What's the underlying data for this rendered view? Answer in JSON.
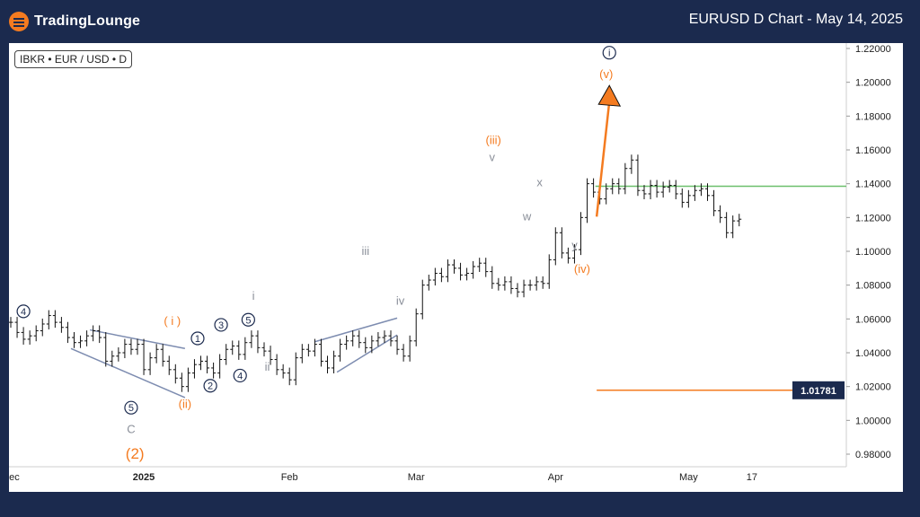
{
  "header": {
    "logo_text": "TradingLounge",
    "title": "EURUSD D Chart - May 14, 2025"
  },
  "symbol_label": "IBKR • EUR / USD • D",
  "colors": {
    "background": "#1b2a4e",
    "orange": "#f47b20",
    "navy": "#1b2a4e",
    "grey": "#8a8f99",
    "green": "#6cbf6c",
    "channel": "#7d8cb0"
  },
  "chart_data": {
    "type": "ohlc",
    "title": "EURUSD D Chart - May 14, 2025",
    "ylim": [
      0.97,
      1.225
    ],
    "y_ticks": [
      "1.22000",
      "1.20000",
      "1.18000",
      "1.16000",
      "1.14000",
      "1.12000",
      "1.10000",
      "1.08000",
      "1.06000",
      "1.04000",
      "1.02000",
      "1.00000",
      "0.98000"
    ],
    "x_ticks": [
      {
        "label": "Dec",
        "bar": 0,
        "bold": false
      },
      {
        "label": "2025",
        "bar": 21,
        "bold": true
      },
      {
        "label": "Feb",
        "bar": 44,
        "bold": false
      },
      {
        "label": "Mar",
        "bar": 64,
        "bold": false
      },
      {
        "label": "Apr",
        "bar": 86,
        "bold": false
      },
      {
        "label": "May",
        "bar": 107,
        "bold": false
      },
      {
        "label": "17",
        "bar": 117,
        "bold": false
      }
    ],
    "closes": [
      1.058,
      1.052,
      1.048,
      1.05,
      1.053,
      1.057,
      1.062,
      1.058,
      1.055,
      1.049,
      1.046,
      1.047,
      1.05,
      1.053,
      1.049,
      1.035,
      1.038,
      1.04,
      1.045,
      1.042,
      1.045,
      1.03,
      1.037,
      1.042,
      1.035,
      1.03,
      1.025,
      1.02,
      1.028,
      1.033,
      1.035,
      1.031,
      1.028,
      1.036,
      1.042,
      1.044,
      1.039,
      1.046,
      1.05,
      1.043,
      1.041,
      1.036,
      1.03,
      1.028,
      1.024,
      1.037,
      1.042,
      1.041,
      1.045,
      1.035,
      1.031,
      1.038,
      1.045,
      1.047,
      1.05,
      1.046,
      1.043,
      1.047,
      1.049,
      1.05,
      1.047,
      1.042,
      1.038,
      1.047,
      1.063,
      1.08,
      1.083,
      1.087,
      1.085,
      1.092,
      1.09,
      1.086,
      1.087,
      1.091,
      1.093,
      1.088,
      1.081,
      1.08,
      1.082,
      1.078,
      1.076,
      1.08,
      1.08,
      1.082,
      1.081,
      1.095,
      1.111,
      1.099,
      1.096,
      1.101,
      1.12,
      1.14,
      1.135,
      1.131,
      1.137,
      1.14,
      1.137,
      1.149,
      1.154,
      1.136,
      1.134,
      1.139,
      1.135,
      1.138,
      1.139,
      1.134,
      1.129,
      1.133,
      1.136,
      1.137,
      1.133,
      1.124,
      1.12,
      1.111,
      1.118,
      1.119
    ],
    "current_value": "1.01781",
    "current_level": 1.0178,
    "green_level": 1.1385,
    "wave_labels": [
      {
        "text": "4",
        "bar": 2,
        "y": 1.0645,
        "style": "navy-circle"
      },
      {
        "text": "5",
        "bar": 19,
        "y": 1.0075,
        "style": "navy-circle"
      },
      {
        "text": "C",
        "bar": 19,
        "y": 0.9945,
        "style": "grey"
      },
      {
        "text": "(2)",
        "bar": 19.6,
        "y": 0.9795,
        "style": "orange-large"
      },
      {
        "text": "( i )",
        "bar": 25.5,
        "y": 1.0585,
        "style": "orange"
      },
      {
        "text": "(ii)",
        "bar": 27.5,
        "y": 1.0095,
        "style": "orange"
      },
      {
        "text": "1",
        "bar": 29.5,
        "y": 1.0485,
        "style": "navy-circle"
      },
      {
        "text": "2",
        "bar": 31.5,
        "y": 1.0205,
        "style": "navy-circle"
      },
      {
        "text": "3",
        "bar": 33.2,
        "y": 1.0565,
        "style": "navy-circle"
      },
      {
        "text": "4",
        "bar": 36.2,
        "y": 1.0265,
        "style": "navy-circle"
      },
      {
        "text": "5",
        "bar": 37.5,
        "y": 1.0595,
        "style": "navy-circle"
      },
      {
        "text": "i",
        "bar": 38.3,
        "y": 1.0735,
        "style": "grey"
      },
      {
        "text": "ii",
        "bar": 40.5,
        "y": 1.0315,
        "style": "grey"
      },
      {
        "text": "iii",
        "bar": 56,
        "y": 1.1,
        "style": "grey"
      },
      {
        "text": "iv",
        "bar": 61.5,
        "y": 1.0705,
        "style": "grey"
      },
      {
        "text": "(iii)",
        "bar": 76.2,
        "y": 1.1655,
        "style": "orange"
      },
      {
        "text": "v",
        "bar": 76,
        "y": 1.1555,
        "style": "grey"
      },
      {
        "text": "w",
        "bar": 81.5,
        "y": 1.1205,
        "style": "grey"
      },
      {
        "text": "x",
        "bar": 83.5,
        "y": 1.1405,
        "style": "grey"
      },
      {
        "text": "y",
        "bar": 89,
        "y": 1.1035,
        "style": "grey"
      },
      {
        "text": "(iv)",
        "bar": 90.2,
        "y": 1.0895,
        "style": "orange"
      },
      {
        "text": "(v)",
        "bar": 94,
        "y": 1.2045,
        "style": "orange"
      },
      {
        "text": "i",
        "bar": 94.5,
        "y": 1.2175,
        "style": "navy-circle"
      }
    ],
    "projection": {
      "from_bar": 92.5,
      "from_y": 1.1205,
      "to_bar": 94.5,
      "to_y": 1.196
    }
  }
}
